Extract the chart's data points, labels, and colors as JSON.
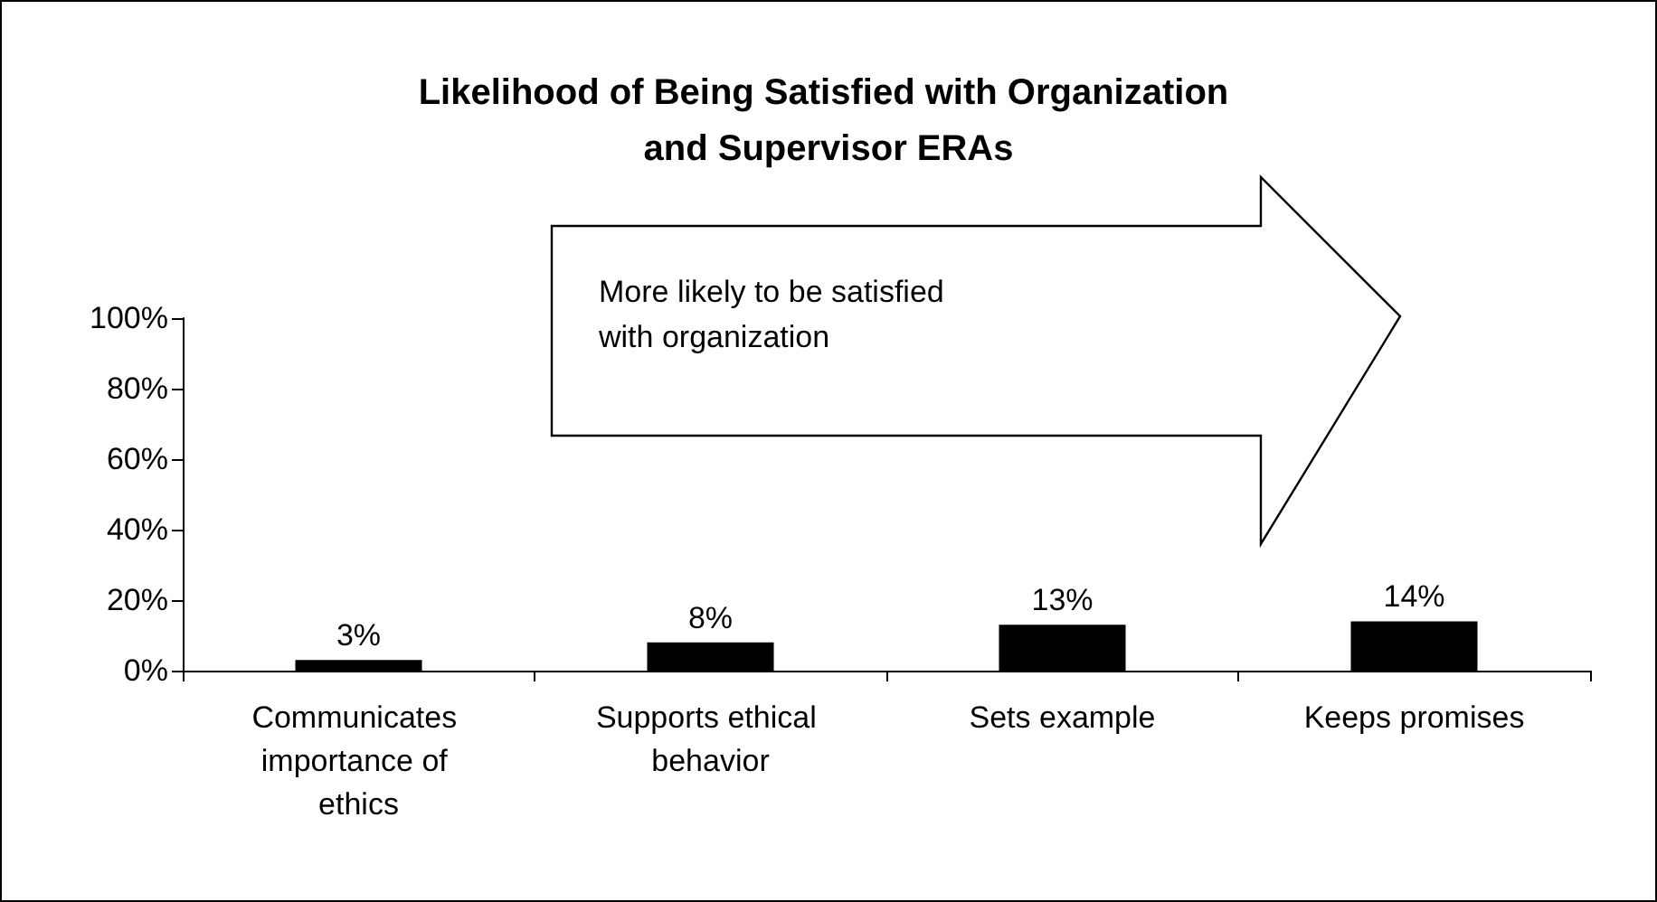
{
  "chart_data": {
    "type": "bar",
    "title": "Likelihood of Being Satisfied with Organization and Supervisor ERAs",
    "categories": [
      "Communicates importance of ethics",
      "Supports ethical behavior",
      "Sets example",
      "Keeps promises"
    ],
    "values": [
      3,
      8,
      13,
      14
    ],
    "color": "#000000",
    "value_labels": [
      "3%",
      "8%",
      "13%",
      "14%"
    ],
    "ylim": [
      0,
      100
    ],
    "yticks": [
      {
        "value": 0,
        "label": "0%"
      },
      {
        "value": 20,
        "label": "20%"
      },
      {
        "value": 40,
        "label": "40%"
      },
      {
        "value": 60,
        "label": "60%"
      },
      {
        "value": 80,
        "label": "80%"
      },
      {
        "value": 100,
        "label": "100%"
      }
    ],
    "grid": false,
    "annotations": [
      "More likely to be satisfied with organization"
    ]
  }
}
